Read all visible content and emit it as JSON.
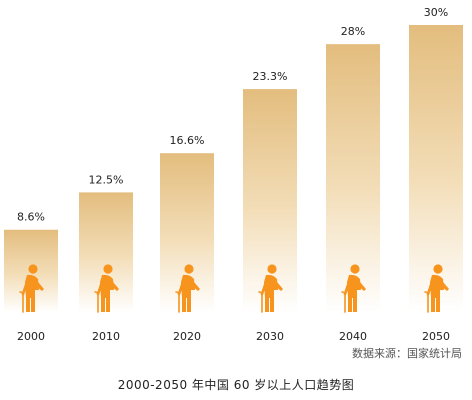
{
  "chart_data": {
    "type": "bar",
    "categories": [
      "2000",
      "2010",
      "2020",
      "2030",
      "2040",
      "2050"
    ],
    "values": [
      8.6,
      12.5,
      16.6,
      23.3,
      28,
      30
    ],
    "value_labels": [
      "8.6%",
      "12.5%",
      "16.6%",
      "23.3%",
      "28%",
      "30%"
    ],
    "unit": "%",
    "ylim": [
      0,
      30
    ],
    "grid": false,
    "legend": "none",
    "title": "",
    "xlabel": "",
    "ylabel": "",
    "bar_icon": "elderly-person-with-cane-icon"
  },
  "caption": "2000-2050 年中国 60 岁以上人口趋势图",
  "source_note": "数据来源：国家统计局",
  "colors": {
    "bar_top": "#E3BD7E",
    "bar_bottom": "#FFFFFF",
    "icon": "#F7941D",
    "text": "#222222",
    "source_text": "#555555"
  }
}
